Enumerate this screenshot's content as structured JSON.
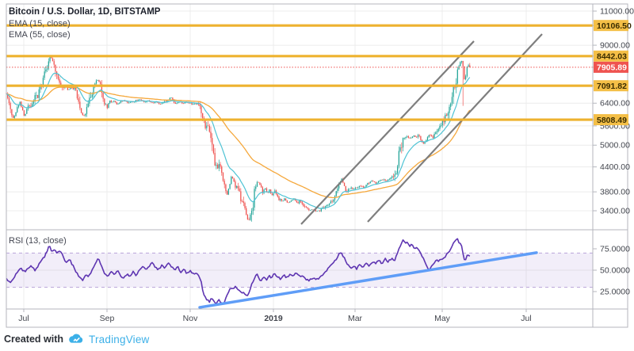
{
  "header": {
    "title": "Bitcoin / U.S. Dollar, 1D, BITSTAMP",
    "ema_fast_label": "EMA (15, close)",
    "ema_slow_label": "EMA (55, close)"
  },
  "rsi_panel": {
    "label": "RSI (13, close)"
  },
  "footer": {
    "created_with": "Created with",
    "brand": "TradingView"
  },
  "colors": {
    "up": "#26a69a",
    "down": "#ef5350",
    "ema_fast": "#4fc3d4",
    "ema_slow": "#f5a83c",
    "level_line": "#eeb22f",
    "level_badge": "#f4bf47",
    "level_badge_text": "#3a2c00",
    "current_line": "#ef5350",
    "current_badge": "#ef5350",
    "current_badge_text": "#ffffff",
    "trend_line": "#7e7e7e",
    "rsi_line": "#5e35b1",
    "rsi_band_fill": "rgba(126,87,194,0.10)",
    "rsi_band_edge": "#b9a4d8",
    "rsi_trend": "#5f9df7",
    "grid": "#ececec",
    "frame": "#b4b6bd",
    "axis_text": "#42454d",
    "title_text": "#1e222d",
    "legend_text": "#434651"
  },
  "chart_data": {
    "type": "candlestick",
    "title": "Bitcoin / U.S. Dollar, 1D, BITSTAMP",
    "symbol": "Bitcoin / U.S. Dollar",
    "interval": "1D",
    "exchange": "BITSTAMP",
    "price_scale": "log",
    "x_ticks": [
      {
        "label": "Jul",
        "x": 30
      },
      {
        "label": "Sep",
        "x": 135
      },
      {
        "label": "Nov",
        "x": 240
      },
      {
        "label": "2019",
        "x": 345,
        "bold": true
      },
      {
        "label": "Mar",
        "x": 448
      },
      {
        "label": "May",
        "x": 558
      },
      {
        "label": "Jul",
        "x": 664
      }
    ],
    "price_ticks": [
      {
        "label": "11000.00",
        "price": 11000
      },
      {
        "label": "9000.00",
        "price": 9000
      },
      {
        "label": "6400.00",
        "price": 6400
      },
      {
        "label": "5600.00",
        "price": 5600
      },
      {
        "label": "5000.00",
        "price": 5000
      },
      {
        "label": "4400.00",
        "price": 4400
      },
      {
        "label": "3800.00",
        "price": 3800
      },
      {
        "label": "3400.00",
        "price": 3400
      }
    ],
    "levels": [
      {
        "label": "10106.50",
        "price": 10106.5
      },
      {
        "label": "8442.03",
        "price": 8442.03
      },
      {
        "label": "7091.82",
        "price": 7091.82
      },
      {
        "label": "5808.49",
        "price": 5808.49
      }
    ],
    "current_price": {
      "label": "7905.89",
      "price": 7905.89
    },
    "emas": [
      {
        "label": "EMA (15, close)",
        "period": 15
      },
      {
        "label": "EMA (55, close)",
        "period": 55
      }
    ],
    "price_anchors": [
      [
        8,
        6800
      ],
      [
        12,
        6300
      ],
      [
        17,
        5850
      ],
      [
        21,
        6150
      ],
      [
        25,
        6450
      ],
      [
        29,
        6100
      ],
      [
        31,
        5900
      ],
      [
        35,
        6300
      ],
      [
        40,
        6250
      ],
      [
        44,
        6700
      ],
      [
        47,
        6650
      ],
      [
        50,
        7000
      ],
      [
        54,
        7300
      ],
      [
        58,
        7700
      ],
      [
        62,
        8350
      ],
      [
        64,
        8450
      ],
      [
        66,
        8150
      ],
      [
        68,
        8200
      ],
      [
        71,
        7650
      ],
      [
        74,
        7500
      ],
      [
        77,
        7000
      ],
      [
        80,
        6950
      ],
      [
        83,
        7100
      ],
      [
        86,
        6850
      ],
      [
        89,
        7050
      ],
      [
        92,
        6900
      ],
      [
        95,
        7000
      ],
      [
        98,
        6500
      ],
      [
        101,
        6250
      ],
      [
        104,
        6000
      ],
      [
        107,
        5900
      ],
      [
        110,
        6300
      ],
      [
        113,
        6450
      ],
      [
        116,
        6700
      ],
      [
        119,
        7050
      ],
      [
        122,
        7300
      ],
      [
        124,
        7400
      ],
      [
        126,
        7200
      ],
      [
        129,
        6800
      ],
      [
        132,
        6400
      ],
      [
        135,
        6250
      ],
      [
        138,
        6500
      ],
      [
        141,
        6450
      ],
      [
        144,
        6500
      ],
      [
        147,
        6350
      ],
      [
        152,
        6450
      ],
      [
        157,
        6500
      ],
      [
        162,
        6400
      ],
      [
        167,
        6450
      ],
      [
        172,
        6500
      ],
      [
        177,
        6550
      ],
      [
        182,
        6450
      ],
      [
        187,
        6500
      ],
      [
        192,
        6400
      ],
      [
        197,
        6450
      ],
      [
        202,
        6350
      ],
      [
        207,
        6450
      ],
      [
        212,
        6500
      ],
      [
        215,
        6650
      ],
      [
        219,
        6450
      ],
      [
        223,
        6400
      ],
      [
        227,
        6450
      ],
      [
        231,
        6400
      ],
      [
        235,
        6450
      ],
      [
        240,
        6400
      ],
      [
        244,
        6350
      ],
      [
        248,
        6400
      ],
      [
        252,
        6350
      ],
      [
        256,
        5900
      ],
      [
        258,
        5650
      ],
      [
        260,
        5580
      ],
      [
        263,
        5650
      ],
      [
        266,
        5300
      ],
      [
        268,
        4900
      ],
      [
        271,
        4550
      ],
      [
        274,
        4400
      ],
      [
        277,
        4500
      ],
      [
        280,
        4300
      ],
      [
        283,
        3900
      ],
      [
        286,
        3700
      ],
      [
        289,
        3900
      ],
      [
        292,
        4150
      ],
      [
        295,
        4050
      ],
      [
        298,
        3900
      ],
      [
        301,
        3800
      ],
      [
        304,
        3650
      ],
      [
        307,
        3500
      ],
      [
        310,
        3350
      ],
      [
        313,
        3200
      ],
      [
        316,
        3300
      ],
      [
        319,
        3550
      ],
      [
        322,
        3900
      ],
      [
        325,
        4100
      ],
      [
        328,
        3950
      ],
      [
        331,
        3800
      ],
      [
        334,
        3900
      ],
      [
        337,
        3750
      ],
      [
        340,
        3850
      ],
      [
        343,
        3700
      ],
      [
        347,
        3800
      ],
      [
        351,
        3650
      ],
      [
        355,
        3600
      ],
      [
        359,
        3650
      ],
      [
        363,
        3550
      ],
      [
        367,
        3600
      ],
      [
        371,
        3650
      ],
      [
        375,
        3550
      ],
      [
        379,
        3600
      ],
      [
        383,
        3500
      ],
      [
        387,
        3450
      ],
      [
        391,
        3400
      ],
      [
        395,
        3430
      ],
      [
        399,
        3380
      ],
      [
        403,
        3400
      ],
      [
        407,
        3450
      ],
      [
        411,
        3500
      ],
      [
        415,
        3550
      ],
      [
        419,
        3600
      ],
      [
        423,
        3700
      ],
      [
        427,
        3950
      ],
      [
        431,
        4100
      ],
      [
        434,
        3950
      ],
      [
        437,
        3800
      ],
      [
        440,
        3850
      ],
      [
        443,
        3900
      ],
      [
        446,
        3850
      ],
      [
        450,
        3900
      ],
      [
        454,
        3950
      ],
      [
        458,
        3900
      ],
      [
        462,
        3950
      ],
      [
        466,
        4000
      ],
      [
        470,
        4050
      ],
      [
        474,
        4000
      ],
      [
        478,
        4050
      ],
      [
        482,
        4100
      ],
      [
        486,
        4050
      ],
      [
        490,
        4100
      ],
      [
        494,
        4150
      ],
      [
        498,
        4120
      ],
      [
        501,
        4150
      ],
      [
        504,
        4850
      ],
      [
        507,
        5050
      ],
      [
        510,
        5200
      ],
      [
        513,
        5300
      ],
      [
        516,
        5200
      ],
      [
        519,
        5250
      ],
      [
        522,
        5300
      ],
      [
        525,
        5200
      ],
      [
        528,
        5300
      ],
      [
        531,
        5150
      ],
      [
        534,
        5050
      ],
      [
        537,
        5100
      ],
      [
        540,
        5250
      ],
      [
        543,
        5300
      ],
      [
        546,
        5200
      ],
      [
        549,
        5400
      ],
      [
        552,
        5500
      ],
      [
        555,
        5600
      ],
      [
        558,
        5700
      ],
      [
        561,
        5850
      ],
      [
        564,
        6000
      ],
      [
        567,
        6300
      ],
      [
        570,
        6700
      ],
      [
        573,
        7100
      ],
      [
        576,
        7300
      ],
      [
        578,
        7800
      ],
      [
        580,
        8000
      ],
      [
        582,
        8300
      ],
      [
        584,
        8100
      ],
      [
        585,
        7400
      ],
      [
        587,
        7300
      ],
      [
        589,
        7900
      ],
      [
        591,
        8000
      ],
      [
        593,
        7950
      ]
    ],
    "long_wick": {
      "x": 585,
      "low": 6300
    },
    "channel_lines": [
      {
        "x1": 380,
        "price1": 3142,
        "x2": 598,
        "price2": 9218
      },
      {
        "x1": 464,
        "price1": 3186,
        "x2": 684,
        "price2": 9611
      }
    ],
    "rsi": {
      "label": "RSI (13, close)",
      "period": 13,
      "ticks": [
        {
          "label": "75.0000",
          "v": 75
        },
        {
          "label": "50.0000",
          "v": 50
        },
        {
          "label": "25.0000",
          "v": 25
        }
      ],
      "band": [
        30,
        70
      ],
      "points": [
        [
          8,
          40
        ],
        [
          14,
          36
        ],
        [
          20,
          45
        ],
        [
          26,
          52
        ],
        [
          32,
          48
        ],
        [
          38,
          55
        ],
        [
          44,
          50
        ],
        [
          50,
          58
        ],
        [
          56,
          66
        ],
        [
          60,
          74
        ],
        [
          62,
          80
        ],
        [
          65,
          72
        ],
        [
          68,
          75
        ],
        [
          72,
          70
        ],
        [
          76,
          73
        ],
        [
          80,
          65
        ],
        [
          84,
          58
        ],
        [
          88,
          62
        ],
        [
          92,
          55
        ],
        [
          96,
          48
        ],
        [
          100,
          42
        ],
        [
          104,
          38
        ],
        [
          108,
          45
        ],
        [
          112,
          42
        ],
        [
          116,
          50
        ],
        [
          120,
          58
        ],
        [
          124,
          64
        ],
        [
          128,
          55
        ],
        [
          132,
          45
        ],
        [
          136,
          42
        ],
        [
          140,
          48
        ],
        [
          144,
          45
        ],
        [
          148,
          50
        ],
        [
          152,
          44
        ],
        [
          156,
          40
        ],
        [
          160,
          46
        ],
        [
          164,
          42
        ],
        [
          168,
          48
        ],
        [
          172,
          44
        ],
        [
          176,
          50
        ],
        [
          180,
          55
        ],
        [
          184,
          50
        ],
        [
          188,
          55
        ],
        [
          192,
          58
        ],
        [
          196,
          54
        ],
        [
          200,
          50
        ],
        [
          204,
          56
        ],
        [
          208,
          52
        ],
        [
          212,
          60
        ],
        [
          216,
          55
        ],
        [
          220,
          50
        ],
        [
          224,
          54
        ],
        [
          228,
          48
        ],
        [
          232,
          52
        ],
        [
          236,
          46
        ],
        [
          240,
          50
        ],
        [
          244,
          45
        ],
        [
          248,
          48
        ],
        [
          252,
          42
        ],
        [
          254,
          35
        ],
        [
          256,
          25
        ],
        [
          258,
          20
        ],
        [
          261,
          16
        ],
        [
          264,
          13
        ],
        [
          267,
          17
        ],
        [
          270,
          14
        ],
        [
          273,
          12
        ],
        [
          276,
          16
        ],
        [
          279,
          13
        ],
        [
          282,
          10
        ],
        [
          285,
          18
        ],
        [
          288,
          24
        ],
        [
          291,
          30
        ],
        [
          294,
          27
        ],
        [
          297,
          31
        ],
        [
          300,
          28
        ],
        [
          303,
          26
        ],
        [
          306,
          24
        ],
        [
          309,
          22
        ],
        [
          312,
          20
        ],
        [
          315,
          26
        ],
        [
          318,
          34
        ],
        [
          321,
          40
        ],
        [
          324,
          45
        ],
        [
          327,
          40
        ],
        [
          330,
          38
        ],
        [
          333,
          42
        ],
        [
          336,
          38
        ],
        [
          339,
          44
        ],
        [
          342,
          40
        ],
        [
          346,
          46
        ],
        [
          350,
          42
        ],
        [
          354,
          40
        ],
        [
          358,
          44
        ],
        [
          362,
          41
        ],
        [
          366,
          45
        ],
        [
          370,
          43
        ],
        [
          374,
          47
        ],
        [
          378,
          44
        ],
        [
          382,
          42
        ],
        [
          386,
          40
        ],
        [
          390,
          38
        ],
        [
          394,
          41
        ],
        [
          398,
          39
        ],
        [
          402,
          40
        ],
        [
          406,
          44
        ],
        [
          410,
          48
        ],
        [
          414,
          52
        ],
        [
          418,
          56
        ],
        [
          422,
          60
        ],
        [
          426,
          66
        ],
        [
          430,
          72
        ],
        [
          434,
          65
        ],
        [
          438,
          58
        ],
        [
          442,
          52
        ],
        [
          446,
          55
        ],
        [
          450,
          52
        ],
        [
          454,
          56
        ],
        [
          458,
          53
        ],
        [
          462,
          58
        ],
        [
          466,
          55
        ],
        [
          470,
          60
        ],
        [
          474,
          57
        ],
        [
          478,
          62
        ],
        [
          482,
          58
        ],
        [
          486,
          63
        ],
        [
          490,
          60
        ],
        [
          494,
          64
        ],
        [
          498,
          62
        ],
        [
          502,
          72
        ],
        [
          505,
          78
        ],
        [
          508,
          86
        ],
        [
          511,
          82
        ],
        [
          514,
          83
        ],
        [
          517,
          78
        ],
        [
          520,
          80
        ],
        [
          523,
          75
        ],
        [
          526,
          77
        ],
        [
          529,
          72
        ],
        [
          532,
          68
        ],
        [
          535,
          62
        ],
        [
          538,
          55
        ],
        [
          541,
          50
        ],
        [
          544,
          54
        ],
        [
          547,
          58
        ],
        [
          550,
          62
        ],
        [
          553,
          60
        ],
        [
          556,
          64
        ],
        [
          559,
          62
        ],
        [
          562,
          66
        ],
        [
          565,
          70
        ],
        [
          568,
          74
        ],
        [
          571,
          80
        ],
        [
          574,
          84
        ],
        [
          577,
          86
        ],
        [
          580,
          82
        ],
        [
          583,
          78
        ],
        [
          585,
          64
        ],
        [
          587,
          62
        ],
        [
          589,
          66
        ],
        [
          591,
          68
        ],
        [
          593,
          67
        ]
      ],
      "trendline": {
        "x1": 252,
        "v1": 6.5,
        "x2": 677,
        "v2": 70.5
      }
    }
  }
}
